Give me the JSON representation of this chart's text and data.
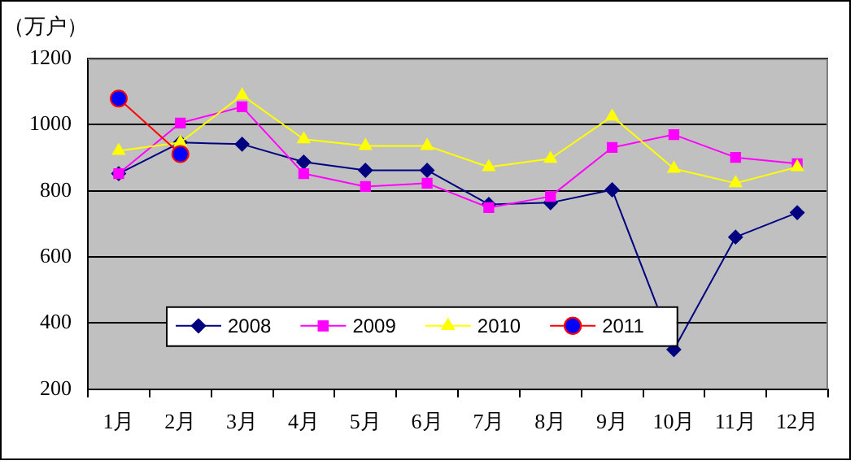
{
  "chart_data": {
    "type": "line",
    "ylabel": "（万户）",
    "categories": [
      "1月",
      "2月",
      "3月",
      "4月",
      "5月",
      "6月",
      "7月",
      "8月",
      "9月",
      "10月",
      "11月",
      "12月"
    ],
    "series": [
      {
        "name": "2008",
        "color": "#000080",
        "marker": "diamond",
        "values": [
          852,
          946,
          941,
          887,
          862,
          862,
          759,
          764,
          803,
          320,
          660,
          734
        ]
      },
      {
        "name": "2009",
        "color": "#ff00ff",
        "marker": "square",
        "values": [
          852,
          1005,
          1054,
          852,
          813,
          823,
          749,
          783,
          931,
          970,
          901,
          882
        ]
      },
      {
        "name": "2010",
        "color": "#ffff00",
        "marker": "triangle",
        "values": [
          921,
          946,
          1089,
          956,
          936,
          936,
          872,
          897,
          1025,
          867,
          823,
          872
        ]
      },
      {
        "name": "2011",
        "color": "#ff0000",
        "marker": "circle",
        "values": [
          1079,
          911,
          null,
          null,
          null,
          null,
          null,
          null,
          null,
          null,
          null,
          null
        ]
      }
    ],
    "ylim": [
      200,
      1200
    ],
    "yticks": [
      200,
      400,
      600,
      800,
      1000,
      1200
    ],
    "grid": "y",
    "legend": "bottom left"
  }
}
